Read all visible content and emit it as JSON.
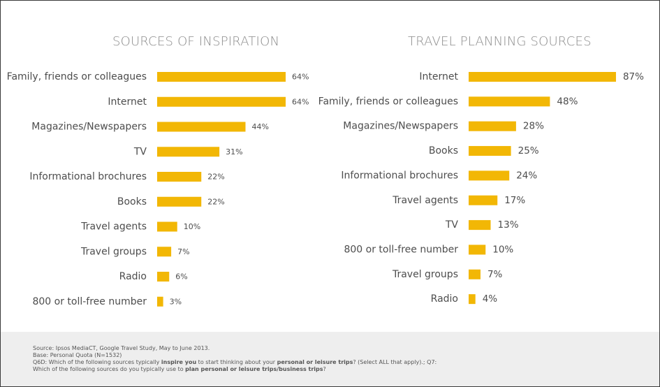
{
  "chart_data": [
    {
      "type": "bar",
      "orientation": "horizontal",
      "title": "SOURCES OF INSPIRATION",
      "categories": [
        "Family, friends or colleagues",
        "Internet",
        "Magazines/Newspapers",
        "TV",
        "Informational brochures",
        "Books",
        "Travel agents",
        "Travel groups",
        "Radio",
        "800 or toll-free number"
      ],
      "values": [
        64,
        64,
        44,
        31,
        22,
        22,
        10,
        7,
        6,
        3
      ],
      "value_labels": [
        "64%",
        "64%",
        "44%",
        "31%",
        "22%",
        "22%",
        "10%",
        "7%",
        "6%",
        "3%"
      ],
      "unit": "%",
      "color": "#f2b705",
      "grid": false,
      "legend": "none"
    },
    {
      "type": "bar",
      "orientation": "horizontal",
      "title": "TRAVEL PLANNING SOURCES",
      "categories": [
        "Internet",
        "Family, friends or colleagues",
        "Magazines/Newspapers",
        "Books",
        "Informational brochures",
        "Travel agents",
        "TV",
        "800 or toll-free number",
        "Travel groups",
        "Radio"
      ],
      "values": [
        87,
        48,
        28,
        25,
        24,
        17,
        13,
        10,
        7,
        4
      ],
      "value_labels": [
        "87%",
        "48%",
        "28%",
        "25%",
        "24%",
        "17%",
        "13%",
        "10%",
        "7%",
        "4%"
      ],
      "unit": "%",
      "color": "#f2b705",
      "grid": false,
      "legend": "none"
    }
  ],
  "footer": {
    "source": "Source: Ipsos MediaCT, Google Travel Study, May to June 2013.",
    "base": "Base: Personal Quota (N=1532)",
    "q6d_pre": "Q6D: Which of the following sources typically ",
    "q6d_b1": "inspire you",
    "q6d_mid": " to start thinking about your ",
    "q6d_b2": "personal or leisure trips",
    "q6d_post": "? (Select ALL that apply).; Q7:",
    "q7_pre": "Which of the following sources do you typically use to ",
    "q7_b": "plan personal or leisure trips/business trips",
    "q7_post": "?"
  }
}
